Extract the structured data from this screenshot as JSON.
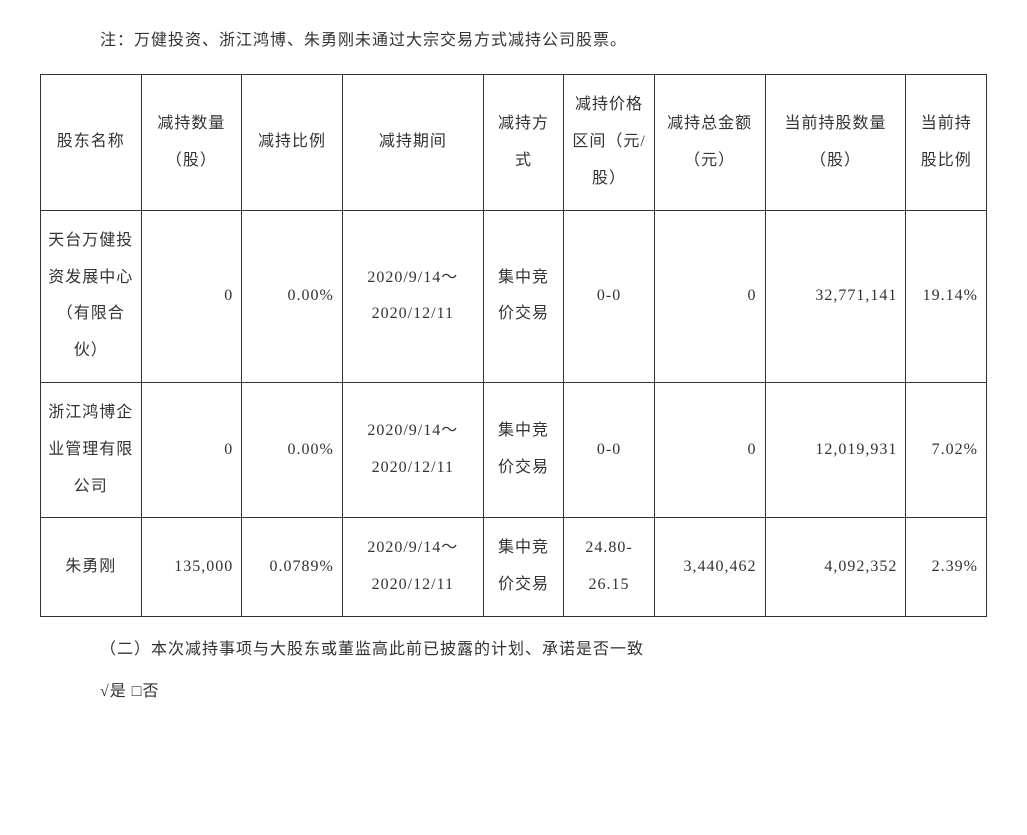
{
  "note": "注：万健投资、浙江鸿博、朱勇刚未通过大宗交易方式减持公司股票。",
  "table": {
    "columns": [
      "股东名称",
      "减持数量（股）",
      "减持比例",
      "减持期间",
      "减持方式",
      "减持价格区间（元/股）",
      "减持总金额（元）",
      "当前持股数量（股）",
      "当前持股比例"
    ],
    "rows": [
      {
        "name": "天台万健投资发展中心（有限合伙）",
        "qty": "0",
        "ratio": "0.00%",
        "period": "2020/9/14～2020/12/11",
        "method": "集中竞价交易",
        "range": "0-0",
        "amount": "0",
        "holding": "32,771,141",
        "curratio": "19.14%"
      },
      {
        "name": "浙江鸿博企业管理有限公司",
        "qty": "0",
        "ratio": "0.00%",
        "period": "2020/9/14～2020/12/11",
        "method": "集中竞价交易",
        "range": "0-0",
        "amount": "0",
        "holding": "12,019,931",
        "curratio": "7.02%"
      },
      {
        "name": "朱勇刚",
        "qty": "135,000",
        "ratio": "0.0789%",
        "period": "2020/9/14～2020/12/11",
        "method": "集中竞价交易",
        "range": "24.80-26.15",
        "amount": "3,440,462",
        "holding": "4,092,352",
        "curratio": "2.39%"
      }
    ]
  },
  "footer_line": "（二）本次减持事项与大股东或董监高此前已披露的计划、承诺是否一致",
  "footer_check": "√是 □否",
  "styling": {
    "border_color": "#333333",
    "text_color": "#333333",
    "background_color": "#ffffff",
    "font_family": "SimSun",
    "base_font_size": 16,
    "line_height": 2.3
  }
}
